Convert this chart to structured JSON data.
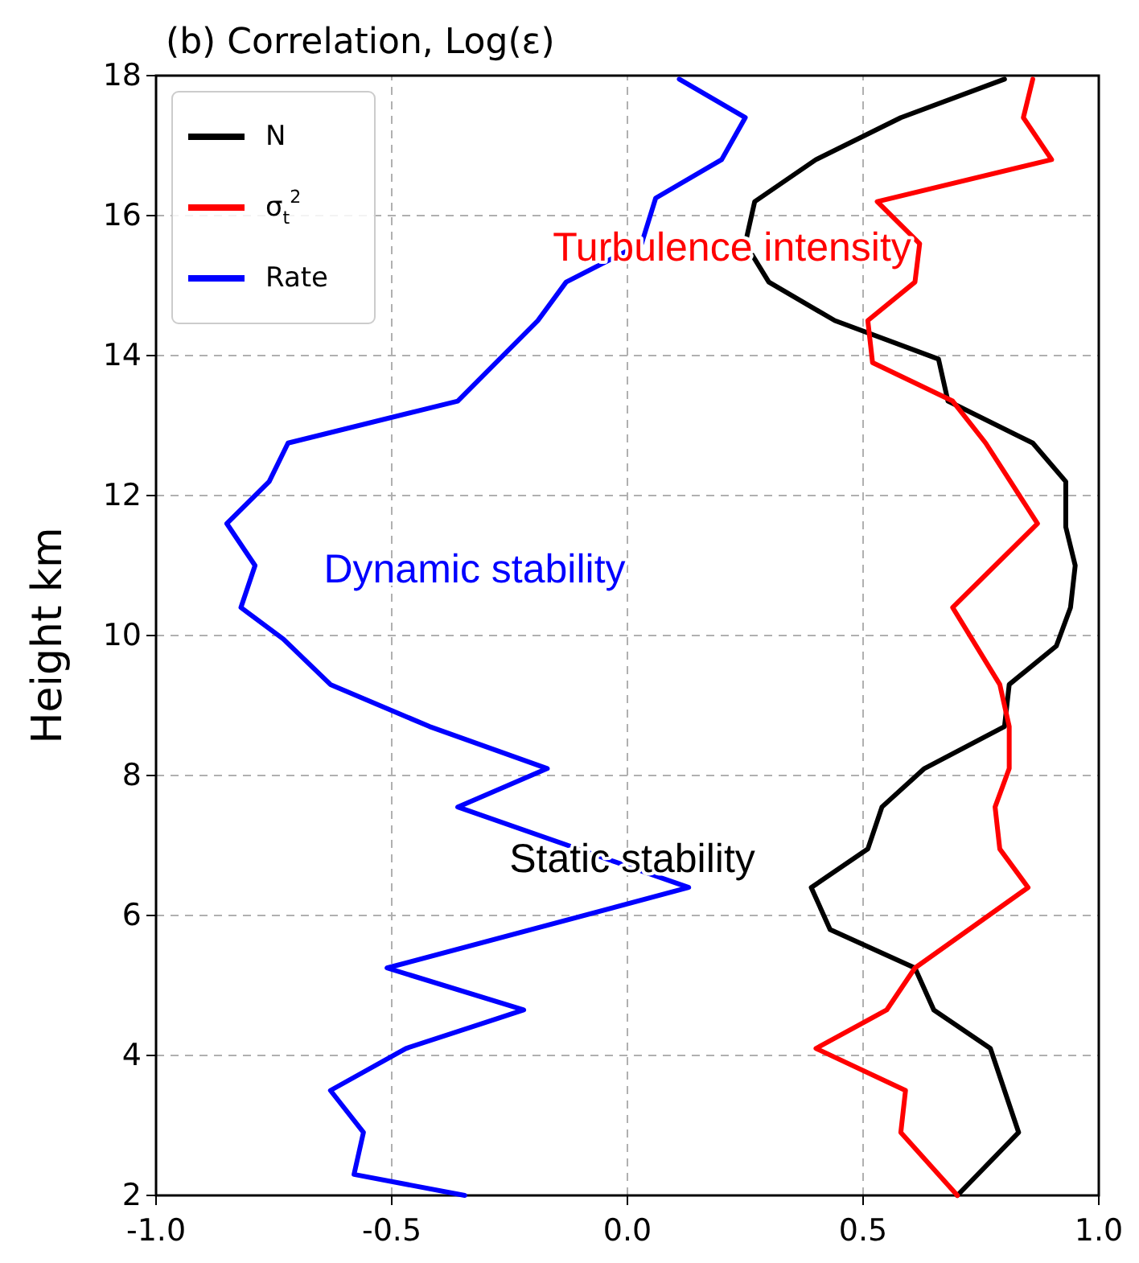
{
  "chart_data": {
    "type": "line",
    "title": "(b)  Correlation, Log(ε)",
    "ylabel": "Height km",
    "xlim": [
      -1,
      1
    ],
    "xticks": [
      {
        "value": -1,
        "label": "-1.0"
      },
      {
        "value": -0.5,
        "label": "-0.5"
      },
      {
        "value": 0,
        "label": "0.0"
      },
      {
        "value": 0.5,
        "label": "0.5"
      },
      {
        "value": 1,
        "label": "1.0"
      }
    ],
    "ylim": [
      2,
      18
    ],
    "yticks": [
      2,
      4,
      6,
      8,
      10,
      12,
      14,
      16,
      18
    ],
    "grid": true,
    "legend": "top left",
    "series": [
      {
        "name": "N",
        "color": "#000000",
        "x": [
          0.7,
          0.83,
          0.77,
          0.65,
          0.61,
          0.43,
          0.39,
          0.51,
          0.54,
          0.63,
          0.8,
          0.81,
          0.91,
          0.94,
          0.95,
          0.93,
          0.93,
          0.86,
          0.68,
          0.66,
          0.44,
          0.3,
          0.25,
          0.27,
          0.4,
          0.58,
          0.8
        ],
        "values": [
          2.0,
          2.9,
          4.1,
          4.65,
          5.25,
          5.8,
          6.4,
          6.95,
          7.55,
          8.1,
          8.7,
          9.3,
          9.85,
          10.4,
          11.0,
          11.55,
          12.2,
          12.75,
          13.35,
          13.95,
          14.5,
          15.05,
          15.6,
          16.2,
          16.8,
          17.4,
          17.95
        ]
      },
      {
        "name": "σ$_{t}$$^{2}$",
        "color": "#ff0000",
        "x": [
          0.7,
          0.58,
          0.59,
          0.4,
          0.55,
          0.61,
          0.85,
          0.79,
          0.78,
          0.81,
          0.81,
          0.79,
          0.69,
          0.87,
          0.76,
          0.69,
          0.52,
          0.51,
          0.61,
          0.62,
          0.53,
          0.9,
          0.84,
          0.86
        ],
        "values": [
          2.0,
          2.9,
          3.5,
          4.1,
          4.65,
          5.25,
          6.4,
          6.95,
          7.55,
          8.1,
          8.7,
          9.3,
          10.4,
          11.6,
          12.75,
          13.35,
          13.9,
          14.5,
          15.05,
          15.6,
          16.2,
          16.8,
          17.4,
          17.95
        ]
      },
      {
        "name": "Rate",
        "color": "#0000ff",
        "x": [
          -0.345,
          -0.58,
          -0.56,
          -0.63,
          -0.47,
          -0.22,
          -0.51,
          0.13,
          -0.36,
          -0.17,
          -0.42,
          -0.63,
          -0.73,
          -0.82,
          -0.79,
          -0.85,
          -0.76,
          -0.72,
          -0.36,
          -0.19,
          -0.13,
          0.03,
          0.06,
          0.2,
          0.25,
          0.11
        ],
        "values": [
          2.0,
          2.3,
          2.9,
          3.5,
          4.1,
          4.65,
          5.25,
          6.4,
          7.55,
          8.1,
          8.7,
          9.3,
          9.95,
          10.4,
          11.0,
          11.6,
          12.2,
          12.75,
          13.35,
          14.5,
          15.05,
          15.6,
          16.25,
          16.8,
          17.4,
          17.95
        ]
      }
    ],
    "annotations": [
      "Turbulence intensity",
      "Dynamic stability",
      "Static stability"
    ]
  }
}
